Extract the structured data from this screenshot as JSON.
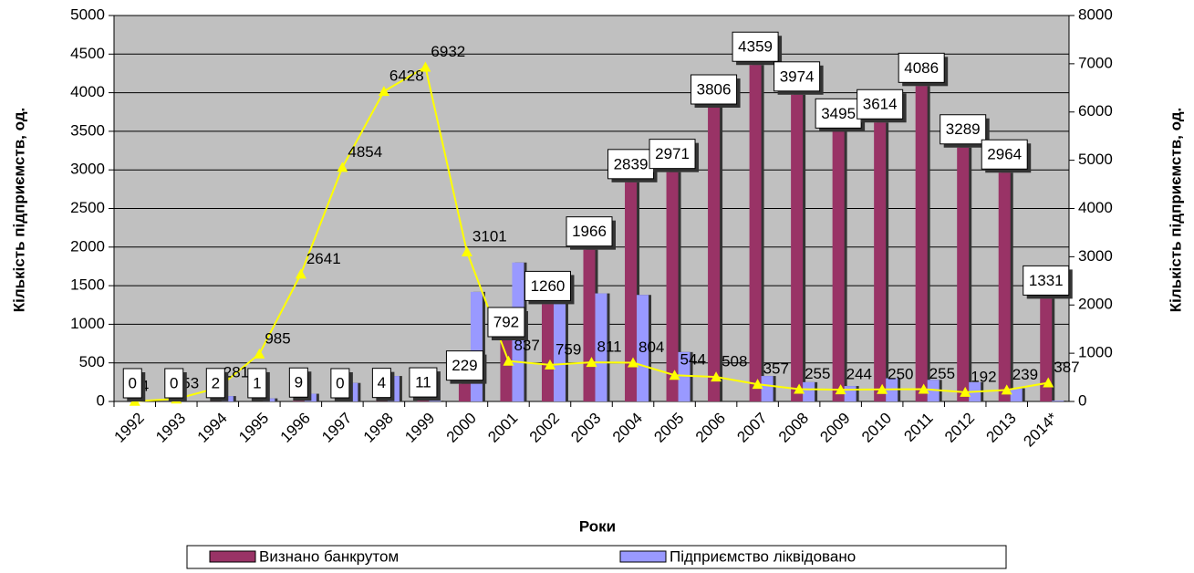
{
  "chart_data": {
    "type": "bar_line",
    "x_label": "Роки",
    "y_label": "Кількість підприємств, од.",
    "y2_label": "Кількість підприємств, од.",
    "categories": [
      "1992",
      "1993",
      "1994",
      "1995",
      "1996",
      "1997",
      "1998",
      "1999",
      "2000",
      "2001",
      "2002",
      "2003",
      "2004",
      "2005",
      "2006",
      "2007",
      "2008",
      "2009",
      "2010",
      "2011",
      "2012",
      "2013",
      "2014*"
    ],
    "series": [
      {
        "name": "Визнано банкрутом",
        "type": "bar",
        "color": "#993366",
        "labeled": true,
        "values": [
          0,
          0,
          2,
          1,
          9,
          0,
          4,
          11,
          229,
          792,
          1260,
          1966,
          2839,
          2971,
          3806,
          4359,
          3974,
          3495,
          3614,
          4086,
          3289,
          2964,
          1331
        ]
      },
      {
        "name": "Підприємство ліквідовано",
        "type": "bar",
        "color": "#9999ff",
        "labeled": false,
        "values": [
          0,
          0,
          70,
          40,
          100,
          240,
          330,
          10,
          1420,
          1800,
          1320,
          1400,
          1380,
          640,
          0,
          330,
          250,
          200,
          300,
          280,
          250,
          170,
          10
        ]
      },
      {
        "type": "line",
        "axis": "y2",
        "color": "#ffff00",
        "labeled": true,
        "values": [
          4,
          53,
          281,
          985,
          2641,
          4854,
          6428,
          6932,
          3101,
          837,
          759,
          811,
          804,
          544,
          508,
          357,
          255,
          244,
          250,
          255,
          192,
          239,
          387
        ]
      }
    ],
    "ylim": [
      0,
      5000
    ],
    "yticks": [
      0,
      500,
      1000,
      1500,
      2000,
      2500,
      3000,
      3500,
      4000,
      4500,
      5000
    ],
    "y2lim": [
      0,
      8000
    ],
    "y2ticks": [
      0,
      1000,
      2000,
      3000,
      4000,
      5000,
      6000,
      7000,
      8000
    ],
    "legend": "bottom"
  }
}
